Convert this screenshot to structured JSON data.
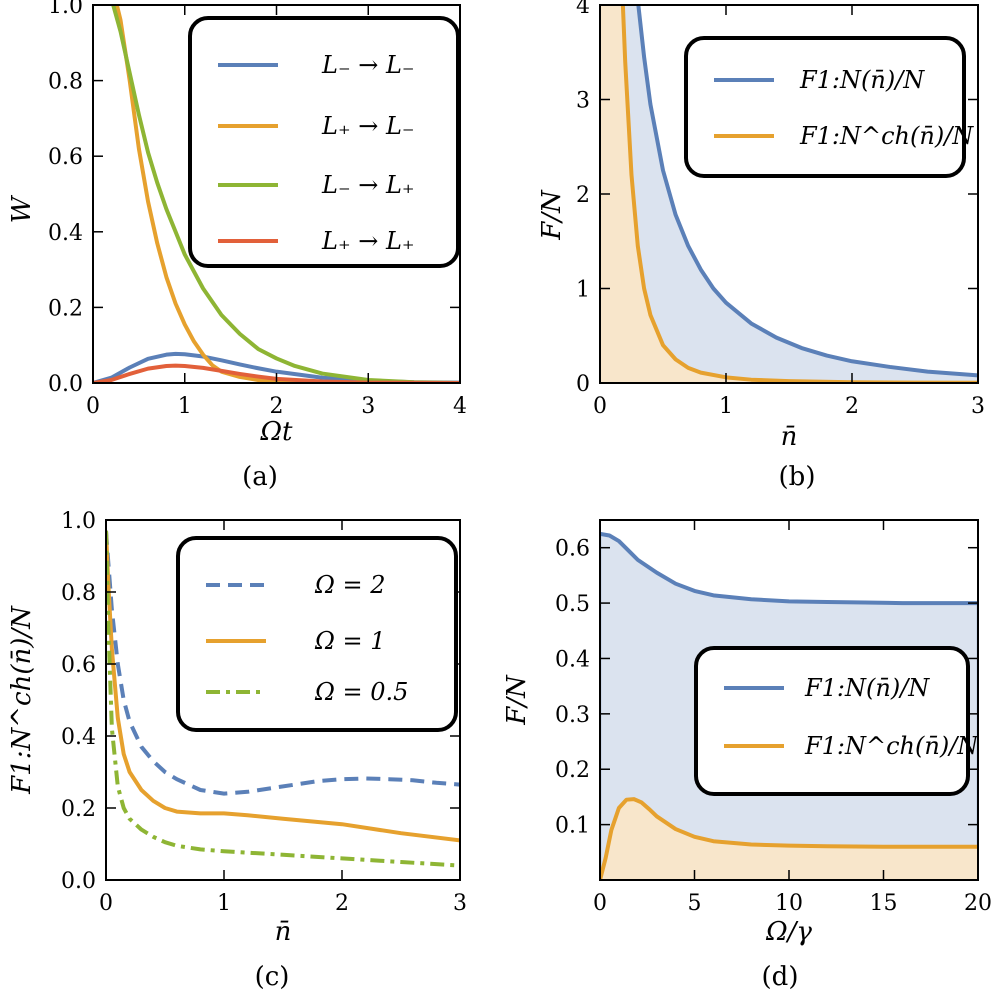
{
  "colors": {
    "blue": "#5b80b8",
    "orange": "#e6a12e",
    "green": "#8eb534",
    "red": "#e2603a",
    "blue_fill": "#dbe3ef",
    "orange_fill": "#f8e6cb"
  },
  "chart_data": [
    {
      "type": "line",
      "caption": "(a)",
      "xlabel": "Ωt",
      "ylabel": "W",
      "xlim": [
        0,
        4
      ],
      "ylim": [
        0,
        1
      ],
      "xticks": [
        "0",
        "1",
        "2",
        "3",
        "4"
      ],
      "yticks": [
        "0.0",
        "0.2",
        "0.4",
        "0.6",
        "0.8",
        "1.0"
      ],
      "legend_position": "top-right",
      "series": [
        {
          "name": "L₋ → L₋",
          "color": "#5b80b8",
          "x": [
            0,
            0.2,
            0.4,
            0.6,
            0.8,
            0.9,
            1.0,
            1.2,
            1.4,
            1.6,
            1.8,
            2.0,
            2.5,
            3.0,
            3.5,
            4.0
          ],
          "y": [
            0,
            0.014,
            0.041,
            0.064,
            0.075,
            0.077,
            0.076,
            0.07,
            0.06,
            0.049,
            0.039,
            0.03,
            0.014,
            0.006,
            0.002,
            0.001
          ]
        },
        {
          "name": "L₊ → L₋",
          "color": "#e6a12e",
          "x": [
            0.2,
            0.26,
            0.3,
            0.4,
            0.5,
            0.6,
            0.7,
            0.8,
            0.9,
            1.0,
            1.1,
            1.2,
            1.3,
            1.4,
            1.6,
            1.8,
            2.0,
            2.5,
            3.0,
            4.0
          ],
          "y": [
            1.05,
            1.0,
            0.96,
            0.8,
            0.62,
            0.48,
            0.37,
            0.28,
            0.21,
            0.155,
            0.11,
            0.075,
            0.047,
            0.03,
            0.016,
            0.008,
            0.004,
            0.001,
            0,
            0
          ]
        },
        {
          "name": "L₋ → L₊",
          "color": "#8eb534",
          "x": [
            0.16,
            0.22,
            0.3,
            0.4,
            0.5,
            0.6,
            0.7,
            0.8,
            0.9,
            1.0,
            1.2,
            1.4,
            1.6,
            1.8,
            2.0,
            2.2,
            2.5,
            3.0,
            3.5,
            4.0
          ],
          "y": [
            1.05,
            1.0,
            0.93,
            0.82,
            0.71,
            0.61,
            0.53,
            0.46,
            0.4,
            0.34,
            0.25,
            0.18,
            0.13,
            0.09,
            0.065,
            0.045,
            0.025,
            0.008,
            0.002,
            0
          ]
        },
        {
          "name": "L₊ → L₊",
          "color": "#e2603a",
          "x": [
            0,
            0.2,
            0.4,
            0.6,
            0.8,
            0.9,
            1.0,
            1.2,
            1.4,
            1.6,
            1.8,
            2.0,
            2.5,
            3.0,
            4.0
          ],
          "y": [
            0,
            0.008,
            0.024,
            0.038,
            0.045,
            0.046,
            0.045,
            0.04,
            0.032,
            0.024,
            0.017,
            0.011,
            0.004,
            0.001,
            0
          ]
        }
      ]
    },
    {
      "type": "area",
      "caption": "(b)",
      "xlabel": "n̄",
      "ylabel": "F/N",
      "xlim": [
        0,
        3
      ],
      "ylim": [
        0,
        4
      ],
      "xticks": [
        "0",
        "1",
        "2",
        "3"
      ],
      "yticks": [
        "0",
        "1",
        "2",
        "3",
        "4"
      ],
      "legend_position": "top-right",
      "series": [
        {
          "name": "F1:N(n̄)/N",
          "color": "#5b80b8",
          "x": [
            0.3,
            0.35,
            0.4,
            0.5,
            0.6,
            0.7,
            0.8,
            0.9,
            1.0,
            1.2,
            1.4,
            1.6,
            1.8,
            2.0,
            2.3,
            2.6,
            3.0
          ],
          "y": [
            4.05,
            3.45,
            2.95,
            2.25,
            1.78,
            1.45,
            1.2,
            1.0,
            0.85,
            0.63,
            0.48,
            0.37,
            0.29,
            0.23,
            0.17,
            0.12,
            0.08
          ]
        },
        {
          "name": "F1:N^ch(n̄)/N",
          "color": "#e6a12e",
          "x": [
            0.18,
            0.2,
            0.25,
            0.3,
            0.35,
            0.4,
            0.5,
            0.6,
            0.7,
            0.8,
            1.0,
            1.2,
            1.5,
            2.0,
            2.5,
            3.0
          ],
          "y": [
            4.05,
            3.4,
            2.2,
            1.45,
            1.0,
            0.72,
            0.4,
            0.25,
            0.16,
            0.11,
            0.06,
            0.035,
            0.02,
            0.008,
            0.004,
            0.002
          ]
        }
      ]
    },
    {
      "type": "line",
      "caption": "(c)",
      "xlabel": "n̄",
      "ylabel": "F1:N^ch(n̄)/N",
      "xlim": [
        0,
        3
      ],
      "ylim": [
        0,
        1
      ],
      "xticks": [
        "0",
        "1",
        "2",
        "3"
      ],
      "yticks": [
        "0.0",
        "0.2",
        "0.4",
        "0.6",
        "0.8",
        "1.0"
      ],
      "legend_position": "top-right",
      "series": [
        {
          "name": "Ω = 2",
          "color": "#5b80b8",
          "dash": "dashed",
          "x": [
            0,
            0.02,
            0.05,
            0.1,
            0.15,
            0.2,
            0.3,
            0.4,
            0.5,
            0.6,
            0.8,
            1.0,
            1.2,
            1.4,
            1.6,
            1.8,
            2.0,
            2.2,
            2.4,
            2.6,
            2.8,
            3.0
          ],
          "y": [
            0.97,
            0.88,
            0.75,
            0.6,
            0.5,
            0.44,
            0.37,
            0.33,
            0.3,
            0.28,
            0.25,
            0.24,
            0.245,
            0.255,
            0.265,
            0.275,
            0.28,
            0.282,
            0.28,
            0.277,
            0.27,
            0.265
          ]
        },
        {
          "name": "Ω = 1",
          "color": "#e6a12e",
          "dash": "solid",
          "x": [
            0,
            0.02,
            0.05,
            0.1,
            0.15,
            0.2,
            0.3,
            0.4,
            0.5,
            0.6,
            0.8,
            1.0,
            1.2,
            1.5,
            2.0,
            2.5,
            3.0
          ],
          "y": [
            0.97,
            0.82,
            0.64,
            0.45,
            0.35,
            0.3,
            0.25,
            0.22,
            0.2,
            0.19,
            0.185,
            0.185,
            0.18,
            0.17,
            0.155,
            0.13,
            0.11
          ]
        },
        {
          "name": "Ω = 0.5",
          "color": "#8eb534",
          "dash": "dashdot",
          "x": [
            0,
            0.02,
            0.05,
            0.1,
            0.15,
            0.2,
            0.3,
            0.4,
            0.5,
            0.6,
            0.8,
            1.0,
            1.5,
            2.0,
            2.5,
            3.0
          ],
          "y": [
            0.97,
            0.7,
            0.42,
            0.26,
            0.2,
            0.17,
            0.14,
            0.12,
            0.105,
            0.095,
            0.085,
            0.08,
            0.07,
            0.06,
            0.05,
            0.04
          ]
        }
      ]
    },
    {
      "type": "area",
      "caption": "(d)",
      "xlabel": "Ω/γ",
      "ylabel": "F/N",
      "xlim": [
        0,
        20
      ],
      "ylim": [
        0,
        0.65
      ],
      "xticks": [
        "0",
        "5",
        "10",
        "15",
        "20"
      ],
      "yticks": [
        "0.1",
        "0.2",
        "0.3",
        "0.4",
        "0.5",
        "0.6"
      ],
      "legend_position": "center-right",
      "series": [
        {
          "name": "F1:N(n̄)/N",
          "color": "#5b80b8",
          "x": [
            0,
            0.5,
            1,
            1.5,
            2,
            3,
            4,
            5,
            6,
            8,
            10,
            12,
            14,
            16,
            18,
            20
          ],
          "y": [
            0.625,
            0.622,
            0.612,
            0.595,
            0.578,
            0.555,
            0.535,
            0.522,
            0.514,
            0.507,
            0.503,
            0.502,
            0.501,
            0.5,
            0.5,
            0.5
          ]
        },
        {
          "name": "F1:N^ch(n̄)/N",
          "color": "#e6a12e",
          "x": [
            0,
            0.3,
            0.6,
            1.0,
            1.4,
            1.8,
            2.2,
            2.6,
            3,
            4,
            5,
            6,
            8,
            10,
            12,
            15,
            20
          ],
          "y": [
            0,
            0.04,
            0.09,
            0.13,
            0.145,
            0.146,
            0.14,
            0.128,
            0.115,
            0.092,
            0.078,
            0.07,
            0.064,
            0.062,
            0.061,
            0.06,
            0.06
          ]
        }
      ]
    }
  ]
}
